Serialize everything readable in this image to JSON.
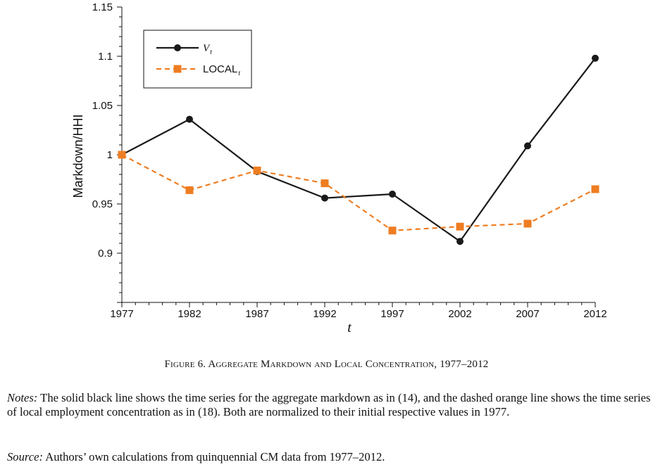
{
  "chart_data": {
    "type": "line",
    "x": [
      1977,
      1982,
      1987,
      1992,
      1997,
      2002,
      2007,
      2012
    ],
    "xlabel": "t",
    "ylabel": "Markdown/HHI",
    "ylim": [
      0.85,
      1.15
    ],
    "yticks": [
      "0.9",
      "0.95",
      "1",
      "1.05",
      "1.1",
      "1.15"
    ],
    "xticks": [
      "1977",
      "1982",
      "1987",
      "1992",
      "1997",
      "2002",
      "2007",
      "2012"
    ],
    "grid": false,
    "legend_position": "top-left",
    "series": [
      {
        "name": "V",
        "name_sub": "t",
        "color": "#1a1a1a",
        "style": "solid",
        "marker": "circle",
        "values": [
          1.0,
          1.036,
          0.983,
          0.956,
          0.96,
          0.912,
          1.009,
          1.098
        ]
      },
      {
        "name": "LOCAL",
        "name_sub": "t",
        "color": "#ee7d22",
        "style": "dashed",
        "marker": "square",
        "values": [
          1.0,
          0.964,
          0.984,
          0.971,
          0.923,
          0.927,
          0.93,
          0.965
        ]
      }
    ]
  },
  "caption": {
    "text": "Figure 6. Aggregate Markdown and Local Concentration, 1977–2012"
  },
  "notes": {
    "lead": "Notes:",
    "text": " The solid black line shows the time series for the aggregate markdown as in (14), and the dashed orange line shows the time series of local employment concentration as in (18). Both are normalized to their initial respective values in 1977."
  },
  "source": {
    "lead": "Source:",
    "text": " Authors’ own calculations from quinquennial CM data from 1977–2012."
  }
}
